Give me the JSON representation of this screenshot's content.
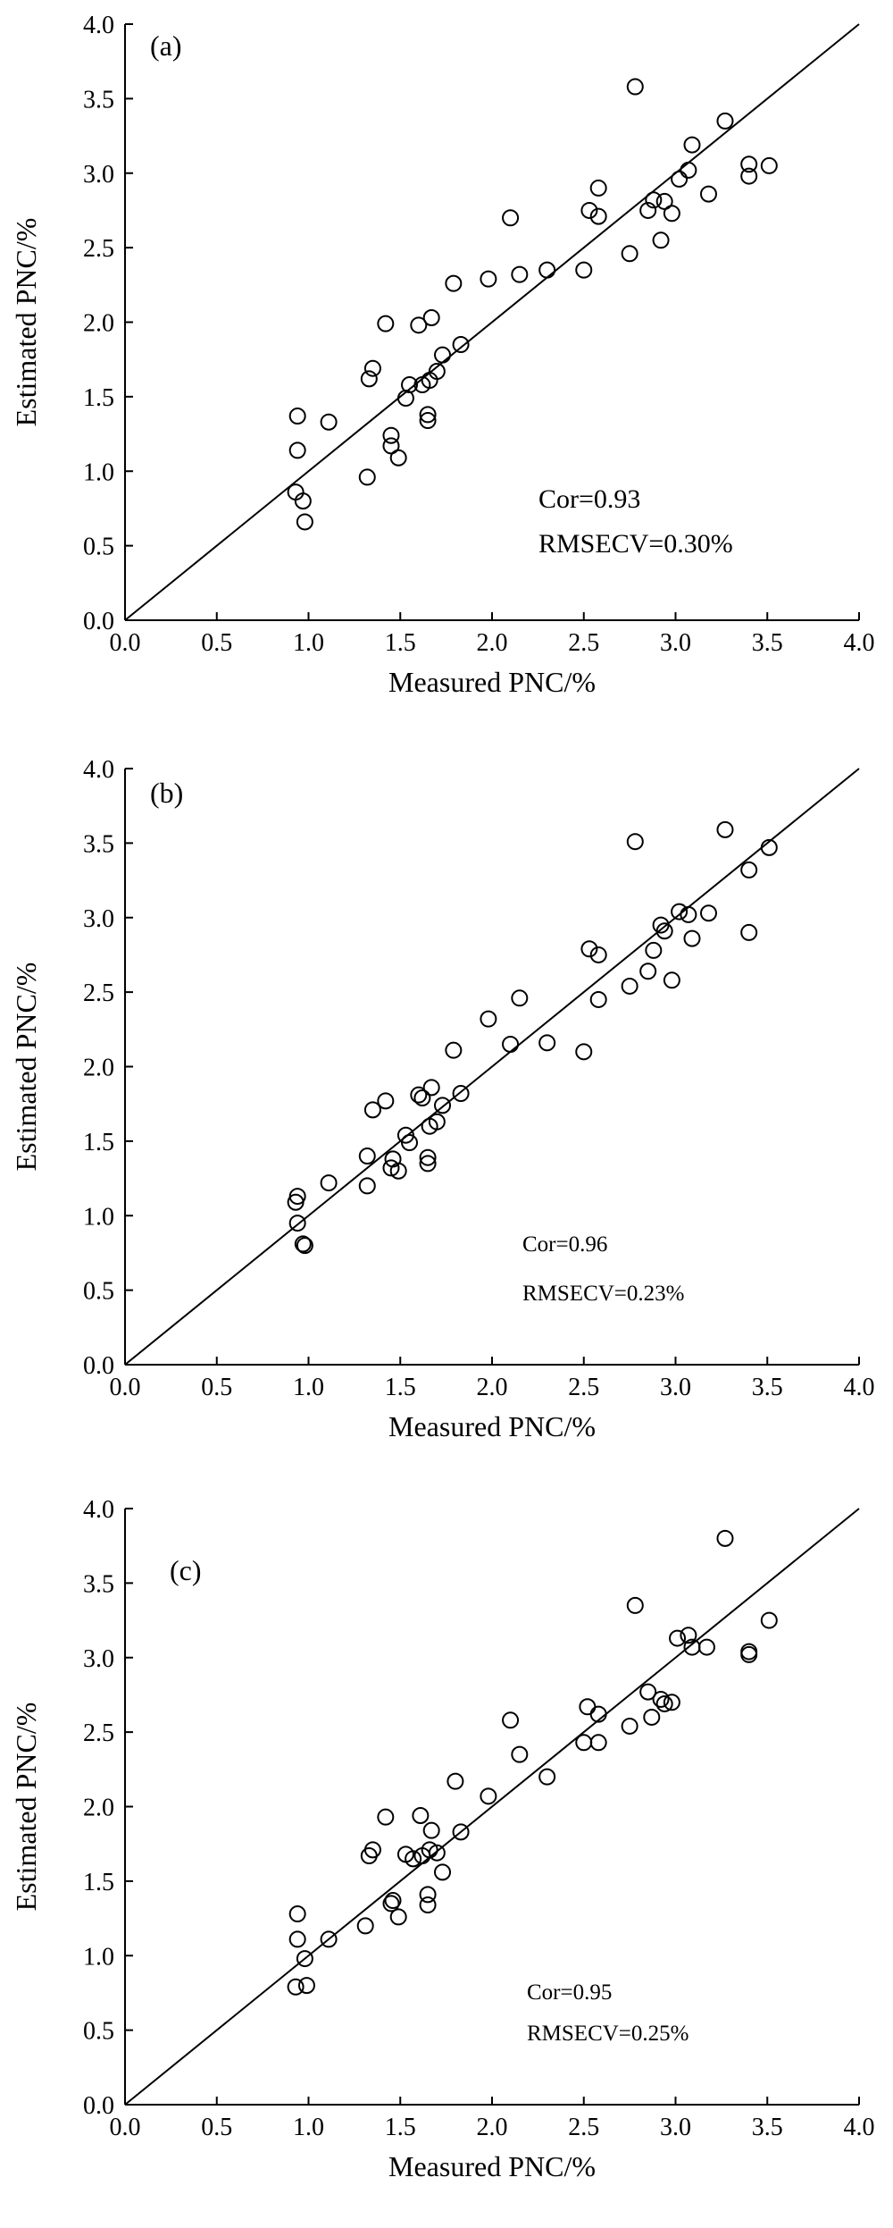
{
  "chart_data": [
    {
      "type": "scatter",
      "panel_label": "(a)",
      "xlabel": "Measured PNC/%",
      "ylabel": "Estimated PNC/%",
      "xlim": [
        0,
        4
      ],
      "ylim": [
        0,
        4
      ],
      "xticks": [
        "0.0",
        "0.5",
        "1.0",
        "1.5",
        "2.0",
        "2.5",
        "3.0",
        "3.5",
        "4.0"
      ],
      "yticks": [
        "0.0",
        "0.5",
        "1.0",
        "1.5",
        "2.0",
        "2.5",
        "3.0",
        "3.5",
        "4.0"
      ],
      "reference_line": "1:1",
      "grid": false,
      "annotations": [
        "Cor=0.93",
        "RMSECV=0.30%"
      ],
      "points": [
        [
          0.93,
          0.86
        ],
        [
          0.94,
          1.14
        ],
        [
          0.94,
          1.37
        ],
        [
          0.97,
          0.8
        ],
        [
          0.98,
          0.66
        ],
        [
          1.11,
          1.33
        ],
        [
          1.32,
          0.96
        ],
        [
          1.33,
          1.62
        ],
        [
          1.35,
          1.69
        ],
        [
          1.42,
          1.99
        ],
        [
          1.45,
          1.17
        ],
        [
          1.45,
          1.24
        ],
        [
          1.49,
          1.09
        ],
        [
          1.53,
          1.49
        ],
        [
          1.55,
          1.58
        ],
        [
          1.6,
          1.98
        ],
        [
          1.62,
          1.58
        ],
        [
          1.65,
          1.34
        ],
        [
          1.65,
          1.38
        ],
        [
          1.66,
          1.61
        ],
        [
          1.67,
          2.03
        ],
        [
          1.7,
          1.67
        ],
        [
          1.73,
          1.78
        ],
        [
          1.79,
          2.26
        ],
        [
          1.83,
          1.85
        ],
        [
          1.98,
          2.29
        ],
        [
          2.1,
          2.7
        ],
        [
          2.15,
          2.32
        ],
        [
          2.3,
          2.35
        ],
        [
          2.5,
          2.35
        ],
        [
          2.53,
          2.75
        ],
        [
          2.58,
          2.71
        ],
        [
          2.58,
          2.9
        ],
        [
          2.75,
          2.46
        ],
        [
          2.78,
          3.58
        ],
        [
          2.85,
          2.75
        ],
        [
          2.88,
          2.82
        ],
        [
          2.92,
          2.55
        ],
        [
          2.94,
          2.81
        ],
        [
          2.98,
          2.73
        ],
        [
          3.02,
          2.96
        ],
        [
          3.07,
          3.02
        ],
        [
          3.09,
          3.19
        ],
        [
          3.18,
          2.86
        ],
        [
          3.27,
          3.35
        ],
        [
          3.4,
          2.98
        ],
        [
          3.4,
          3.06
        ],
        [
          3.51,
          3.05
        ]
      ]
    },
    {
      "type": "scatter",
      "panel_label": "(b)",
      "xlabel": "Measured PNC/%",
      "ylabel": "Estimated PNC/%",
      "xlim": [
        0,
        4
      ],
      "ylim": [
        0,
        4
      ],
      "xticks": [
        "0.0",
        "0.5",
        "1.0",
        "1.5",
        "2.0",
        "2.5",
        "3.0",
        "3.5",
        "4.0"
      ],
      "yticks": [
        "0.0",
        "0.5",
        "1.0",
        "1.5",
        "2.0",
        "2.5",
        "3.0",
        "3.5",
        "4.0"
      ],
      "reference_line": "1:1",
      "grid": false,
      "annotations": [
        "Cor=0.96",
        "RMSECV=0.23%"
      ],
      "points": [
        [
          0.93,
          1.09
        ],
        [
          0.94,
          1.13
        ],
        [
          0.94,
          0.95
        ],
        [
          0.97,
          0.81
        ],
        [
          0.98,
          0.8
        ],
        [
          1.11,
          1.22
        ],
        [
          1.32,
          1.4
        ],
        [
          1.32,
          1.2
        ],
        [
          1.35,
          1.71
        ],
        [
          1.42,
          1.77
        ],
        [
          1.45,
          1.32
        ],
        [
          1.46,
          1.38
        ],
        [
          1.49,
          1.3
        ],
        [
          1.53,
          1.54
        ],
        [
          1.55,
          1.49
        ],
        [
          1.6,
          1.81
        ],
        [
          1.62,
          1.79
        ],
        [
          1.65,
          1.35
        ],
        [
          1.65,
          1.39
        ],
        [
          1.66,
          1.6
        ],
        [
          1.67,
          1.86
        ],
        [
          1.7,
          1.63
        ],
        [
          1.73,
          1.74
        ],
        [
          1.79,
          2.11
        ],
        [
          1.83,
          1.82
        ],
        [
          1.98,
          2.32
        ],
        [
          2.1,
          2.15
        ],
        [
          2.15,
          2.46
        ],
        [
          2.3,
          2.16
        ],
        [
          2.5,
          2.1
        ],
        [
          2.53,
          2.79
        ],
        [
          2.58,
          2.45
        ],
        [
          2.58,
          2.75
        ],
        [
          2.75,
          2.54
        ],
        [
          2.78,
          3.51
        ],
        [
          2.85,
          2.64
        ],
        [
          2.88,
          2.78
        ],
        [
          2.92,
          2.95
        ],
        [
          2.94,
          2.91
        ],
        [
          2.98,
          2.58
        ],
        [
          3.02,
          3.04
        ],
        [
          3.07,
          3.02
        ],
        [
          3.09,
          2.86
        ],
        [
          3.18,
          3.03
        ],
        [
          3.27,
          3.59
        ],
        [
          3.4,
          2.9
        ],
        [
          3.4,
          3.32
        ],
        [
          3.51,
          3.47
        ]
      ]
    },
    {
      "type": "scatter",
      "panel_label": "(c)",
      "xlabel": "Measured PNC/%",
      "ylabel": "Estimated PNC/%",
      "xlim": [
        0,
        4
      ],
      "ylim": [
        0,
        4
      ],
      "xticks": [
        "0.0",
        "0.5",
        "1.0",
        "1.5",
        "2.0",
        "2.5",
        "3.0",
        "3.5",
        "4.0"
      ],
      "yticks": [
        "0.0",
        "0.5",
        "1.0",
        "1.5",
        "2.0",
        "2.5",
        "3.0",
        "3.5",
        "4.0"
      ],
      "reference_line": "1:1",
      "grid": false,
      "annotations": [
        "Cor=0.95",
        "RMSECV=0.25%"
      ],
      "points": [
        [
          0.93,
          0.79
        ],
        [
          0.94,
          1.11
        ],
        [
          0.94,
          1.28
        ],
        [
          0.98,
          0.98
        ],
        [
          0.99,
          0.8
        ],
        [
          1.11,
          1.11
        ],
        [
          1.31,
          1.2
        ],
        [
          1.33,
          1.67
        ],
        [
          1.35,
          1.71
        ],
        [
          1.42,
          1.93
        ],
        [
          1.45,
          1.35
        ],
        [
          1.46,
          1.37
        ],
        [
          1.49,
          1.26
        ],
        [
          1.53,
          1.68
        ],
        [
          1.57,
          1.65
        ],
        [
          1.61,
          1.94
        ],
        [
          1.62,
          1.67
        ],
        [
          1.65,
          1.34
        ],
        [
          1.65,
          1.41
        ],
        [
          1.66,
          1.71
        ],
        [
          1.67,
          1.84
        ],
        [
          1.7,
          1.69
        ],
        [
          1.73,
          1.56
        ],
        [
          1.8,
          2.17
        ],
        [
          1.83,
          1.83
        ],
        [
          1.98,
          2.07
        ],
        [
          2.1,
          2.58
        ],
        [
          2.15,
          2.35
        ],
        [
          2.3,
          2.2
        ],
        [
          2.5,
          2.43
        ],
        [
          2.52,
          2.67
        ],
        [
          2.58,
          2.43
        ],
        [
          2.58,
          2.62
        ],
        [
          2.75,
          2.54
        ],
        [
          2.78,
          3.35
        ],
        [
          2.85,
          2.77
        ],
        [
          2.87,
          2.6
        ],
        [
          2.92,
          2.72
        ],
        [
          2.94,
          2.69
        ],
        [
          2.98,
          2.7
        ],
        [
          3.01,
          3.13
        ],
        [
          3.07,
          3.15
        ],
        [
          3.09,
          3.07
        ],
        [
          3.17,
          3.07
        ],
        [
          3.27,
          3.8
        ],
        [
          3.4,
          3.02
        ],
        [
          3.4,
          3.04
        ],
        [
          3.51,
          3.25
        ]
      ]
    }
  ]
}
